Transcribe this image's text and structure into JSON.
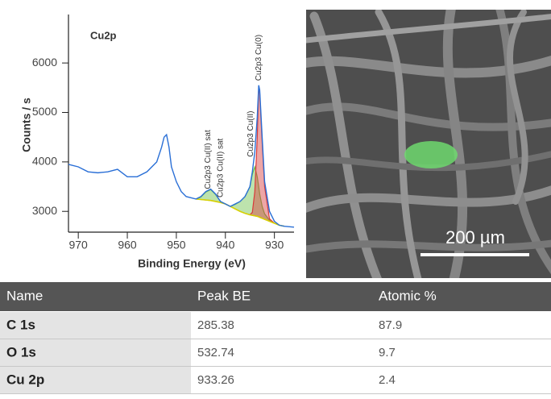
{
  "chart_data": {
    "type": "line",
    "title": "Cu2p",
    "xlabel": "Binding Energy (eV)",
    "ylabel": "Counts / s",
    "xlim": [
      972,
      926
    ],
    "ylim": [
      2580,
      6980
    ],
    "xticks": [
      970,
      960,
      950,
      940,
      930
    ],
    "yticks": [
      3000,
      4000,
      5000,
      6000
    ],
    "x": [
      972,
      970,
      968,
      966,
      964,
      962,
      960,
      958,
      956,
      954,
      953,
      952.5,
      952,
      951.5,
      951,
      950,
      949,
      948,
      946,
      945,
      944,
      943,
      942,
      941,
      940,
      939,
      938,
      937,
      936,
      935,
      934.5,
      934,
      933.5,
      933.2,
      933,
      932.5,
      932,
      931,
      930,
      929,
      928,
      926
    ],
    "series": [
      {
        "color": "#2a6fd6",
        "values": [
          3950,
          3900,
          3800,
          3780,
          3800,
          3850,
          3700,
          3700,
          3800,
          4000,
          4300,
          4500,
          4550,
          4300,
          3900,
          3600,
          3400,
          3300,
          3250,
          3300,
          3400,
          3450,
          3350,
          3200,
          3150,
          3100,
          3150,
          3200,
          3300,
          3500,
          3800,
          4200,
          4900,
          5550,
          5450,
          4500,
          3600,
          3000,
          2800,
          2720,
          2700,
          2680
        ]
      },
      {
        "color": "#d8d000",
        "values": [
          null,
          null,
          null,
          null,
          null,
          null,
          null,
          null,
          null,
          null,
          null,
          null,
          null,
          null,
          null,
          null,
          null,
          null,
          3250,
          3240,
          3230,
          3220,
          3200,
          3180,
          3150,
          3100,
          3050,
          3000,
          2960,
          2930,
          2920,
          2910,
          2900,
          2890,
          2880,
          2860,
          2840,
          2800,
          2760,
          2720,
          2700,
          null
        ]
      },
      {
        "color": "#6cc04a",
        "values": [
          null,
          null,
          null,
          null,
          null,
          null,
          null,
          null,
          null,
          null,
          null,
          null,
          null,
          null,
          null,
          null,
          null,
          null,
          3250,
          3290,
          3390,
          3440,
          3340,
          3200,
          3150,
          3100,
          3140,
          3200,
          3300,
          3500,
          3750,
          3900,
          3700,
          3500,
          3350,
          3100,
          2950,
          2820,
          2760,
          2720,
          2700,
          null
        ]
      },
      {
        "color": "#d83a3a",
        "values": [
          null,
          null,
          null,
          null,
          null,
          null,
          null,
          null,
          null,
          null,
          null,
          null,
          null,
          null,
          null,
          null,
          null,
          null,
          null,
          null,
          null,
          null,
          null,
          null,
          null,
          null,
          null,
          null,
          null,
          2930,
          2980,
          3400,
          4500,
          5500,
          5400,
          4400,
          3500,
          2850,
          2760,
          null,
          null,
          null
        ]
      }
    ],
    "annotations": [
      {
        "text": "Cu2p3 Cu(II) sat",
        "x": 943.5,
        "y": 3450
      },
      {
        "text": "Cu2p3 Cu(II) sat",
        "x": 941,
        "y": 3280
      },
      {
        "text": "Cu2p3 Cu(II)",
        "x": 934.8,
        "y": 4100
      },
      {
        "text": "Cu2p3 Cu(0)",
        "x": 933.2,
        "y": 5640
      }
    ]
  },
  "image": {
    "scale_bar": "200 µm"
  },
  "table": {
    "columns": [
      "Name",
      "Peak BE",
      "Atomic %"
    ],
    "rows": [
      [
        "C 1s",
        285.38,
        87.9
      ],
      [
        "O 1s",
        532.74,
        9.7
      ],
      [
        "Cu 2p",
        933.26,
        2.4
      ]
    ]
  }
}
